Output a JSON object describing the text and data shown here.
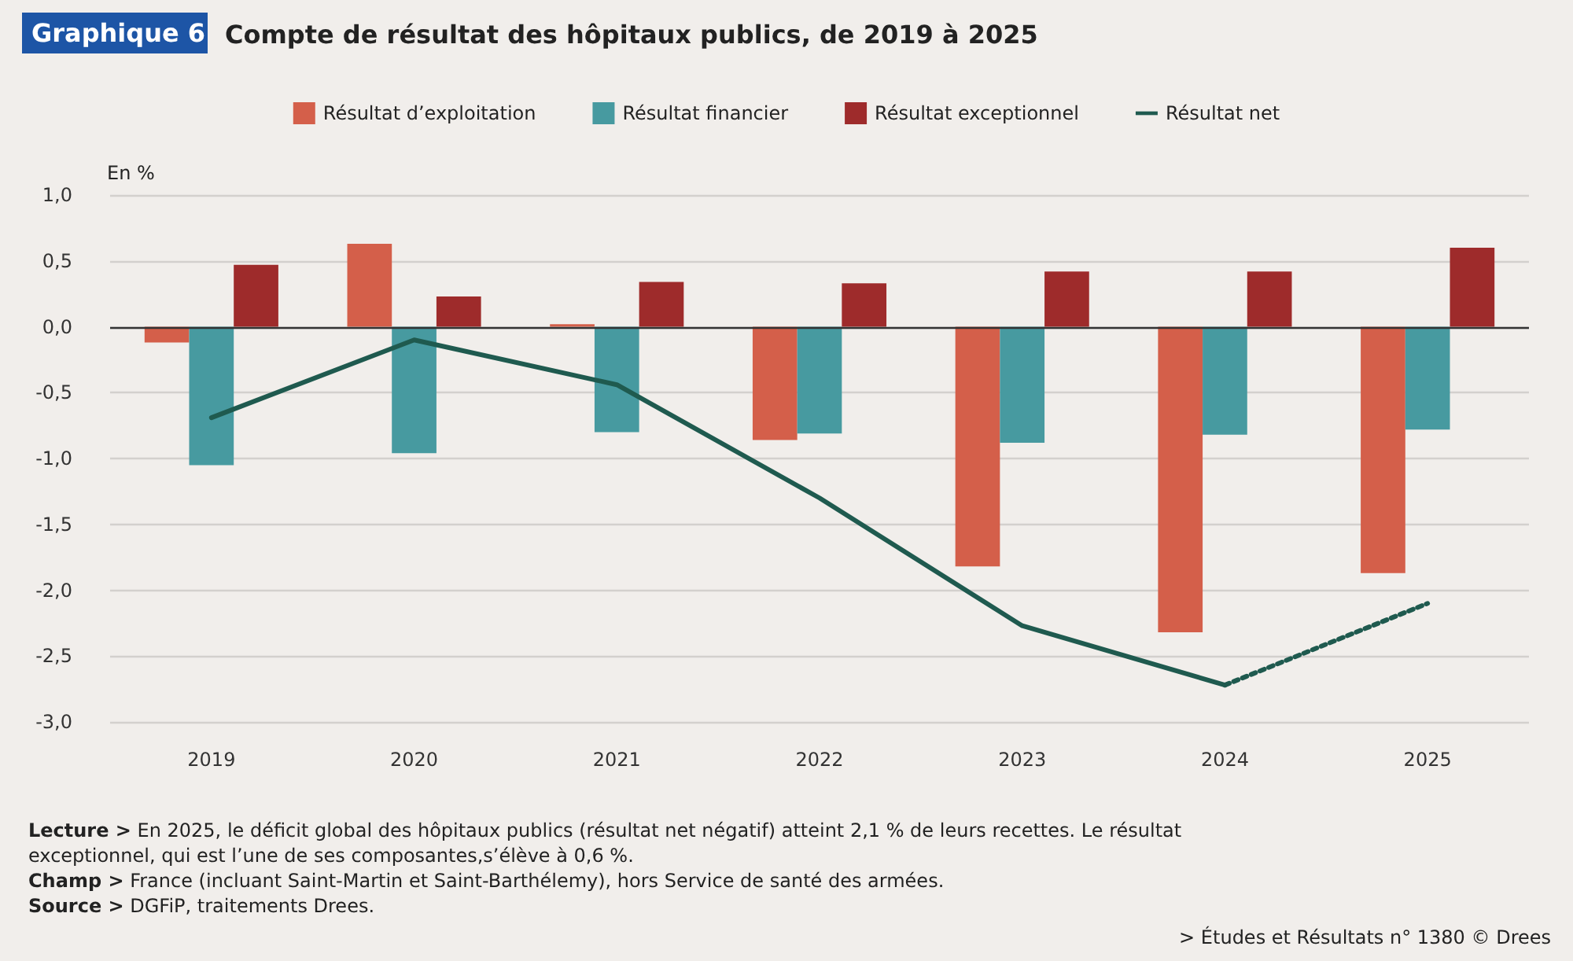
{
  "chart_data": {
    "type": "bar",
    "title": "Compte de résultat des hôpitaux publics, de 2019 à 2025",
    "ylabel": "En %",
    "categories": [
      "2019",
      "2020",
      "2021",
      "2022",
      "2023",
      "2024",
      "2025"
    ],
    "series": [
      {
        "name": "Résultat d’exploitation",
        "color": "#d45f4a",
        "values": [
          -0.12,
          0.63,
          0.02,
          -0.86,
          -1.82,
          -2.32,
          -1.87
        ]
      },
      {
        "name": "Résultat financier",
        "color": "#479aa0",
        "values": [
          -1.05,
          -0.96,
          -0.8,
          -0.81,
          -0.88,
          -0.82,
          -0.78
        ]
      },
      {
        "name": "Résultat exceptionnel",
        "color": "#9e2b2b",
        "values": [
          0.47,
          0.23,
          0.34,
          0.33,
          0.42,
          0.42,
          0.6
        ]
      },
      {
        "name": "Résultat net",
        "type": "line",
        "color": "#1f5a4f",
        "line_style": "solid",
        "values": [
          -0.69,
          -0.1,
          -0.44,
          -1.3,
          -2.27,
          -2.72,
          null
        ]
      },
      {
        "type": "line",
        "color": "#1f5a4f",
        "line_style": "dotted",
        "values": [
          null,
          null,
          null,
          null,
          null,
          -2.72,
          -2.1
        ]
      }
    ],
    "ylim": [
      -3,
      1
    ],
    "yticks": [
      {
        "value": -3,
        "label": "-3,0"
      },
      {
        "value": -2.5,
        "label": "-2,5"
      },
      {
        "value": -2,
        "label": "-2,0"
      },
      {
        "value": -1.5,
        "label": "-1,5"
      },
      {
        "value": -1,
        "label": "-1,0"
      },
      {
        "value": -0.5,
        "label": "-0,5"
      },
      {
        "value": 0,
        "label": "0,0"
      },
      {
        "value": 0.5,
        "label": "0,5"
      },
      {
        "value": 1,
        "label": "1,0"
      }
    ],
    "grid": "y",
    "legend": "top",
    "marker": "none",
    "ref_lines": [
      {
        "axis": "y",
        "value": 0,
        "color": "#333333"
      }
    ],
    "annotations": [
      "Graphique 6",
      "Lecture > En 2025, le déficit global des hôpitaux publics (résultat net négatif) atteint 2,1 % de leurs recettes. Le résultat exceptionnel, qui est l’une de ses composantes,s’élève à 0,6 %.",
      "Champ > France (incluant Saint-Martin et Saint-Barthélemy), hors Service de santé des armées.",
      "Source > DGFiP, traitements Drees.",
      "> Études et Résultats n° 1380 © Drees"
    ]
  }
}
